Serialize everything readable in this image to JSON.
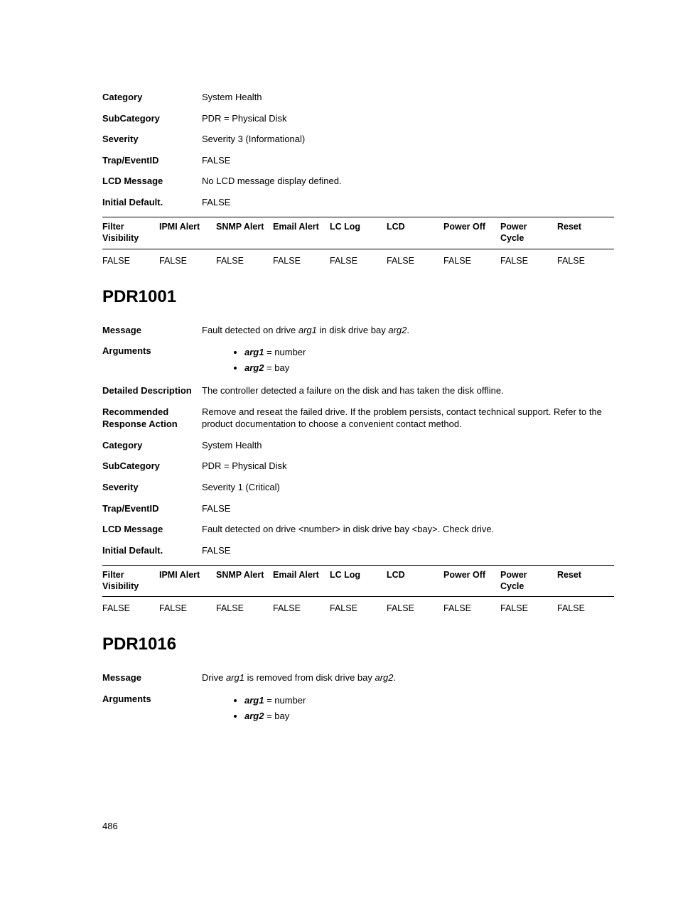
{
  "block0": {
    "rows": [
      {
        "label": "Category",
        "value": "System Health"
      },
      {
        "label": "SubCategory",
        "value": "PDR = Physical Disk"
      },
      {
        "label": "Severity",
        "value": "Severity 3 (Informational)"
      },
      {
        "label": "Trap/EventID",
        "value": "FALSE"
      },
      {
        "label": "LCD Message",
        "value": "No LCD message display defined."
      },
      {
        "label": "Initial Default.",
        "value": "FALSE"
      }
    ],
    "alert_headers": [
      "Filter Visibility",
      "IPMI Alert",
      "SNMP Alert",
      "Email Alert",
      "LC Log",
      "LCD",
      "Power Off",
      "Power Cycle",
      "Reset"
    ],
    "alert_values": [
      "FALSE",
      "FALSE",
      "FALSE",
      "FALSE",
      "FALSE",
      "FALSE",
      "FALSE",
      "FALSE",
      "FALSE"
    ]
  },
  "pdr1001": {
    "heading": "PDR1001",
    "message_label": "Message",
    "message_pre": "Fault detected on drive ",
    "message_arg1": "arg1",
    "message_mid": " in disk drive bay ",
    "message_arg2": "arg2",
    "message_post": ".",
    "args_label": "Arguments",
    "args": [
      {
        "name": "arg1",
        "eq": " = number"
      },
      {
        "name": "arg2",
        "eq": " = bay"
      }
    ],
    "rows": [
      {
        "label": "Detailed Description",
        "value": "The controller detected a failure on the disk and has taken the disk offline."
      },
      {
        "label": "Recommended Response Action",
        "value": "Remove and reseat the failed drive. If the problem persists, contact technical support. Refer to the product documentation to choose a convenient contact method."
      },
      {
        "label": "Category",
        "value": "System Health"
      },
      {
        "label": "SubCategory",
        "value": "PDR = Physical Disk"
      },
      {
        "label": "Severity",
        "value": "Severity 1 (Critical)"
      },
      {
        "label": "Trap/EventID",
        "value": "FALSE"
      },
      {
        "label": "LCD Message",
        "value": "Fault detected on drive <number> in disk drive bay <bay>. Check drive."
      },
      {
        "label": "Initial Default.",
        "value": "FALSE"
      }
    ],
    "alert_headers": [
      "Filter Visibility",
      "IPMI Alert",
      "SNMP Alert",
      "Email Alert",
      "LC Log",
      "LCD",
      "Power Off",
      "Power Cycle",
      "Reset"
    ],
    "alert_values": [
      "FALSE",
      "FALSE",
      "FALSE",
      "FALSE",
      "FALSE",
      "FALSE",
      "FALSE",
      "FALSE",
      "FALSE"
    ]
  },
  "pdr1016": {
    "heading": "PDR1016",
    "message_label": "Message",
    "message_pre": "Drive ",
    "message_arg1": "arg1",
    "message_mid": " is removed from disk drive bay ",
    "message_arg2": "arg2",
    "message_post": ".",
    "args_label": "Arguments",
    "args": [
      {
        "name": "arg1",
        "eq": " = number"
      },
      {
        "name": "arg2",
        "eq": " = bay"
      }
    ]
  },
  "page_number": "486"
}
